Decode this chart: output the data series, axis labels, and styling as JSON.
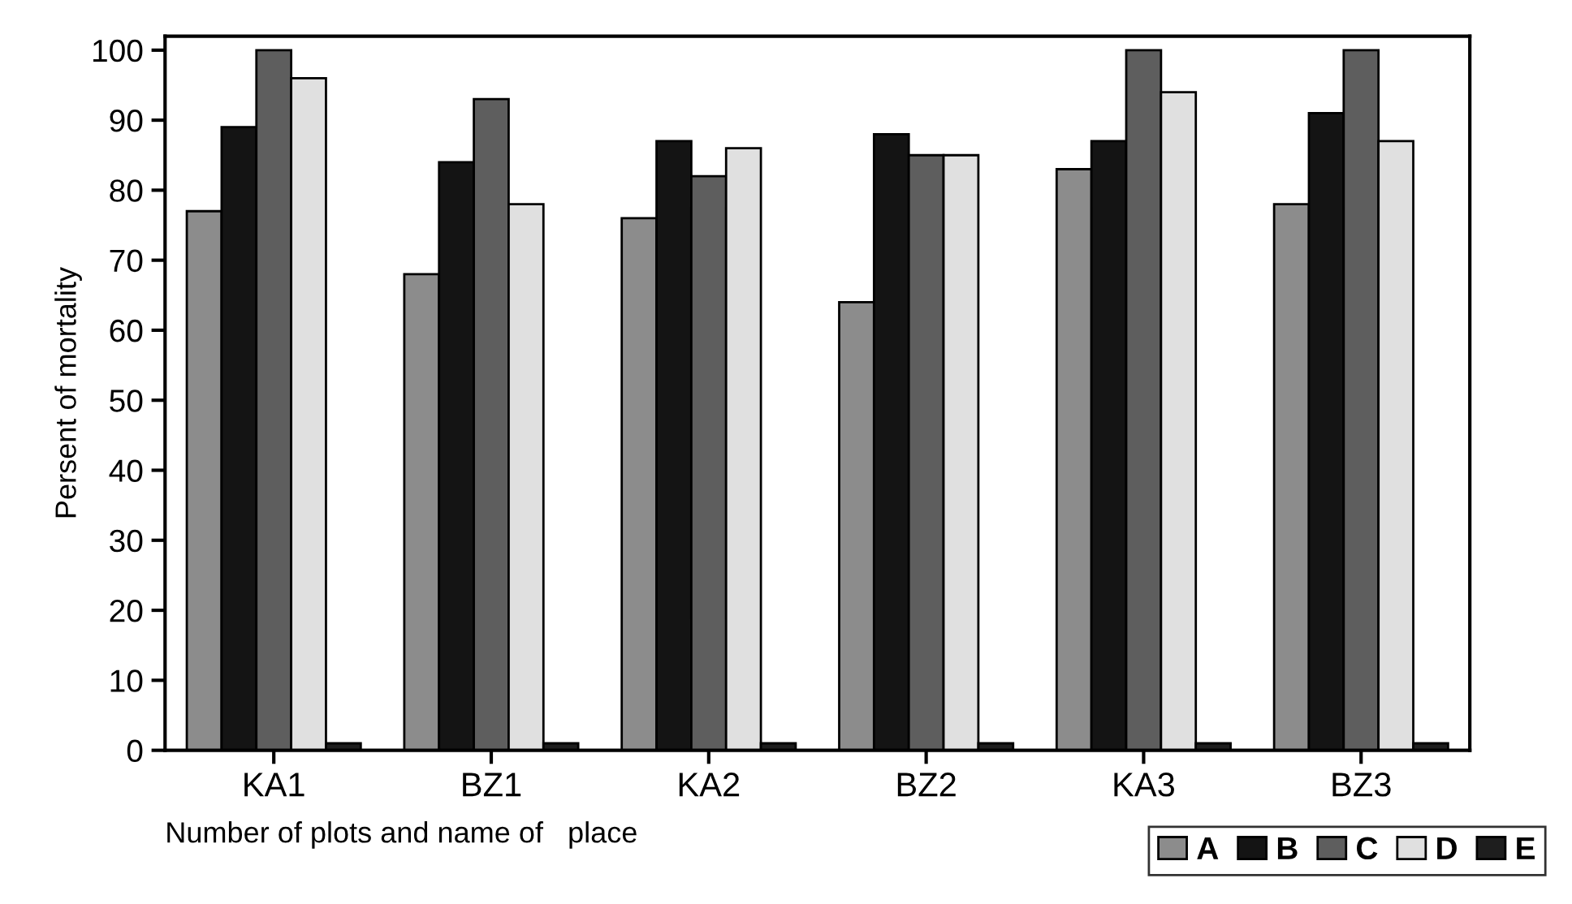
{
  "chart_data": {
    "type": "bar",
    "xlabel": "Number of plots and name of   place",
    "ylabel": "Persent of mortality",
    "categories": [
      "KA1",
      "BZ1",
      "KA2",
      "BZ2",
      "KA3",
      "BZ3"
    ],
    "series": [
      {
        "name": "A",
        "color": "#8c8c8c",
        "values": [
          77,
          68,
          76,
          64,
          83,
          78
        ]
      },
      {
        "name": "B",
        "color": "#141414",
        "values": [
          89,
          84,
          87,
          88,
          87,
          91
        ]
      },
      {
        "name": "C",
        "color": "#5e5e5e",
        "values": [
          100,
          93,
          82,
          85,
          100,
          100
        ]
      },
      {
        "name": "D",
        "color": "#e0e0e0",
        "values": [
          96,
          78,
          86,
          85,
          94,
          87
        ]
      },
      {
        "name": "E",
        "color": "#1e1e1e",
        "values": [
          1,
          1,
          1,
          1,
          1,
          1
        ]
      }
    ],
    "ylim": [
      0,
      102
    ],
    "yticks": [
      0,
      10,
      20,
      30,
      40,
      50,
      60,
      70,
      80,
      90,
      100
    ],
    "grid": false,
    "legend": "bottom right"
  }
}
